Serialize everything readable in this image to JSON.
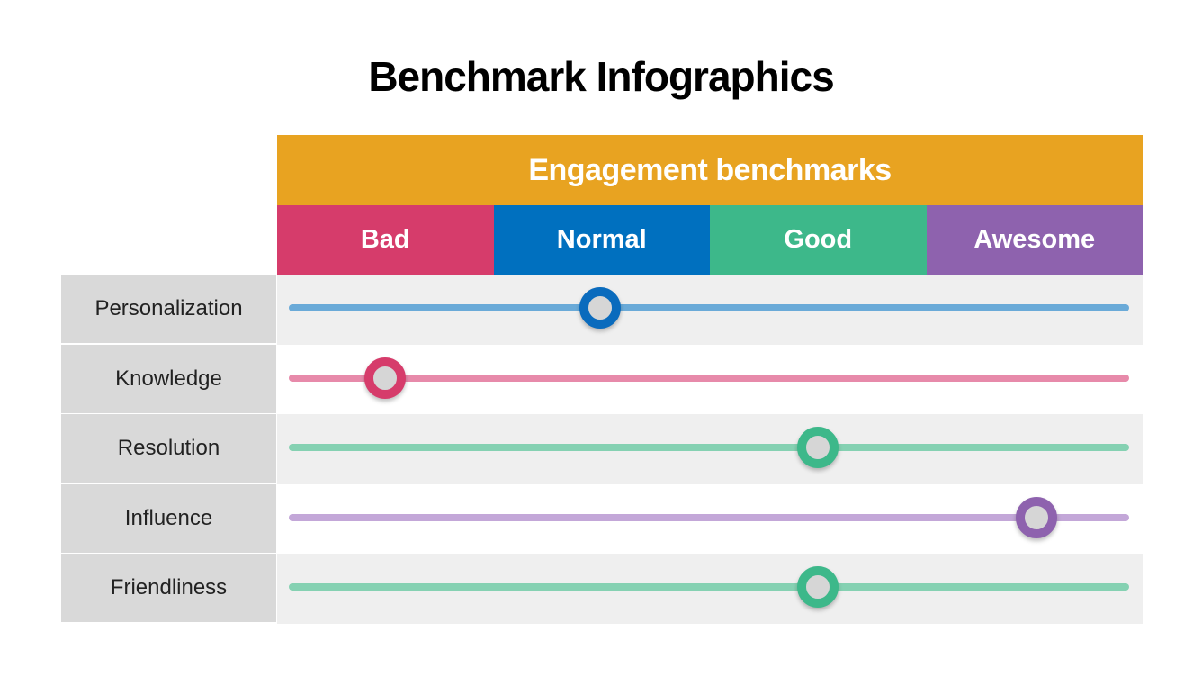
{
  "title": "Benchmark Infographics",
  "header": {
    "label": "Engagement benchmarks",
    "color": "#e8a321"
  },
  "categories": [
    {
      "label": "Bad",
      "color": "#d63c6b"
    },
    {
      "label": "Normal",
      "color": "#0070bf"
    },
    {
      "label": "Good",
      "color": "#3db88a"
    },
    {
      "label": "Awesome",
      "color": "#8e62ae"
    }
  ],
  "rows": [
    {
      "label": "Personalization",
      "value": 0.37,
      "bar_color": "#6aaad8",
      "knob_color": "#0a6bbd"
    },
    {
      "label": "Knowledge",
      "value": 0.115,
      "bar_color": "#e78aaa",
      "knob_color": "#d63c6b"
    },
    {
      "label": "Resolution",
      "value": 0.63,
      "bar_color": "#85d1b2",
      "knob_color": "#3db88a"
    },
    {
      "label": "Influence",
      "value": 0.89,
      "bar_color": "#c3a7d8",
      "knob_color": "#8e62ae"
    },
    {
      "label": "Friendliness",
      "value": 0.63,
      "bar_color": "#85d1b2",
      "knob_color": "#3db88a"
    }
  ]
}
